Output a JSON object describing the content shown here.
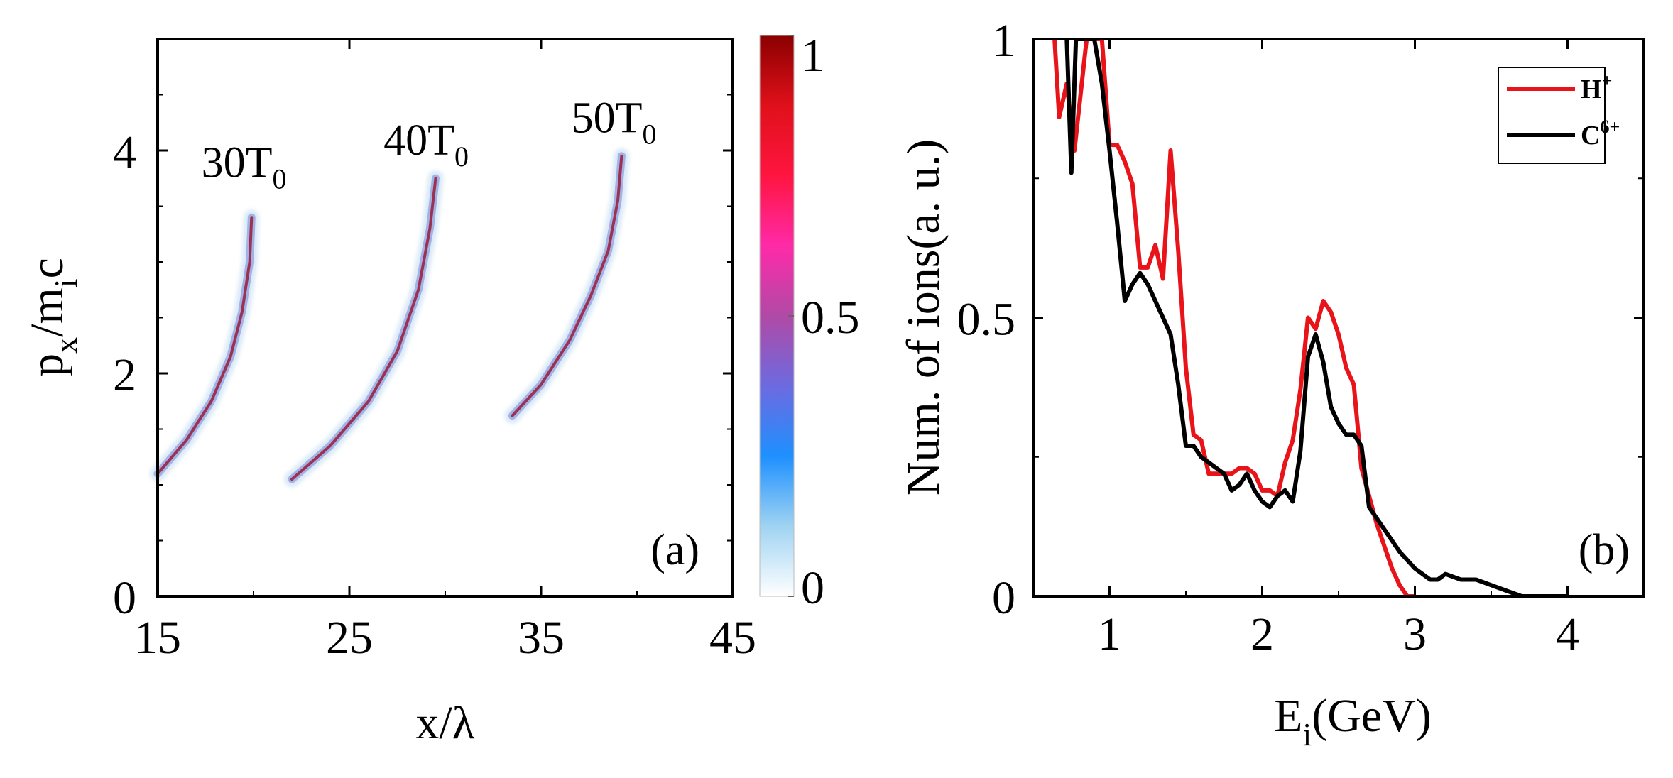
{
  "chart_data": [
    {
      "panel_label": "(a)",
      "type": "heatmap",
      "xlabel_main": "x/λ",
      "ylabel_main": "p",
      "ylabel_sub_x": "x",
      "ylabel_mid": "/m",
      "ylabel_sub_i": "i",
      "ylabel_end": "c",
      "xlim": [
        15,
        45
      ],
      "ylim": [
        0,
        5
      ],
      "xticks": [
        15,
        25,
        35,
        45
      ],
      "xtick_labels": [
        "15",
        "25",
        "35",
        "45"
      ],
      "yticks": [
        0,
        2,
        4
      ],
      "ytick_labels": [
        "0",
        "2",
        "4"
      ],
      "colorbar": {
        "range": [
          0,
          1
        ],
        "ticks": [
          0,
          0.5,
          1
        ],
        "tick_labels": [
          "0",
          "0.5",
          "1"
        ],
        "colors": [
          "#ffffff",
          "#9fd3f2",
          "#1e90ff",
          "#6d6ae0",
          "#b04aa6",
          "#ff2aa8",
          "#ff1540",
          "#e0101a",
          "#8b0000"
        ]
      },
      "annotations": [
        {
          "text": "30T",
          "sub": "0",
          "x": 19.5,
          "y": 3.8
        },
        {
          "text": "40T",
          "sub": "0",
          "x": 29.0,
          "y": 4.0
        },
        {
          "text": "50T",
          "sub": "0",
          "x": 38.8,
          "y": 4.2
        }
      ],
      "series": [
        {
          "name": "30T0",
          "x": [
            15.0,
            16.5,
            17.8,
            18.8,
            19.4,
            19.8,
            19.9
          ],
          "y": [
            1.1,
            1.4,
            1.75,
            2.15,
            2.55,
            3.0,
            3.4
          ]
        },
        {
          "name": "40T0",
          "x": [
            22.0,
            24.0,
            26.0,
            27.5,
            28.6,
            29.2,
            29.5
          ],
          "y": [
            1.05,
            1.35,
            1.75,
            2.2,
            2.75,
            3.3,
            3.75
          ]
        },
        {
          "name": "50T0",
          "x": [
            33.5,
            35.0,
            36.5,
            37.6,
            38.5,
            39.0,
            39.2
          ],
          "y": [
            1.62,
            1.9,
            2.3,
            2.7,
            3.1,
            3.55,
            3.95
          ]
        }
      ]
    },
    {
      "panel_label": "(b)",
      "type": "line",
      "xlabel_main": "E",
      "xlabel_sub": "i",
      "xlabel_end": "(GeV)",
      "ylabel": "Num. of  ions(a. u.)",
      "xlim": [
        0.5,
        4.5
      ],
      "ylim": [
        0,
        1
      ],
      "xticks": [
        1,
        2,
        3,
        4
      ],
      "xtick_labels": [
        "1",
        "2",
        "3",
        "4"
      ],
      "yticks": [
        0,
        0.5,
        1
      ],
      "ytick_labels": [
        "0",
        "0.5",
        "1"
      ],
      "legend_position": "top-right",
      "series": [
        {
          "name": "H",
          "sup": "+",
          "color": "#e8141a",
          "x": [
            0.64,
            0.67,
            0.72,
            0.77,
            0.85,
            0.9,
            0.95,
            1.0,
            1.05,
            1.1,
            1.15,
            1.2,
            1.25,
            1.3,
            1.35,
            1.4,
            1.45,
            1.5,
            1.55,
            1.6,
            1.65,
            1.7,
            1.75,
            1.8,
            1.85,
            1.9,
            1.95,
            2.0,
            2.05,
            2.1,
            2.15,
            2.2,
            2.25,
            2.3,
            2.35,
            2.4,
            2.45,
            2.5,
            2.55,
            2.6,
            2.65,
            2.7,
            2.75,
            2.8,
            2.85,
            2.9,
            2.95,
            3.0
          ],
          "y": [
            1.0,
            0.86,
            0.92,
            0.8,
            1.0,
            1.0,
            1.0,
            0.81,
            0.81,
            0.78,
            0.74,
            0.59,
            0.59,
            0.63,
            0.57,
            0.8,
            0.62,
            0.41,
            0.29,
            0.28,
            0.22,
            0.22,
            0.22,
            0.22,
            0.23,
            0.23,
            0.22,
            0.19,
            0.19,
            0.18,
            0.24,
            0.28,
            0.37,
            0.5,
            0.48,
            0.53,
            0.51,
            0.47,
            0.41,
            0.38,
            0.23,
            0.18,
            0.13,
            0.09,
            0.05,
            0.02,
            0.0,
            0.0
          ]
        },
        {
          "name": "C",
          "sup": "6+",
          "color": "#000000",
          "x": [
            0.72,
            0.75,
            0.78,
            0.85,
            0.9,
            0.95,
            1.0,
            1.05,
            1.1,
            1.15,
            1.2,
            1.25,
            1.3,
            1.35,
            1.4,
            1.45,
            1.5,
            1.55,
            1.6,
            1.65,
            1.7,
            1.75,
            1.8,
            1.85,
            1.9,
            1.95,
            2.0,
            2.05,
            2.1,
            2.15,
            2.2,
            2.25,
            2.3,
            2.35,
            2.4,
            2.45,
            2.5,
            2.55,
            2.6,
            2.65,
            2.7,
            2.8,
            2.9,
            3.0,
            3.1,
            3.15,
            3.2,
            3.3,
            3.4,
            3.5,
            3.6,
            3.7,
            3.8,
            4.0
          ],
          "y": [
            1.0,
            0.76,
            1.0,
            1.0,
            1.0,
            0.92,
            0.8,
            0.67,
            0.53,
            0.56,
            0.58,
            0.56,
            0.53,
            0.5,
            0.47,
            0.38,
            0.27,
            0.27,
            0.25,
            0.24,
            0.23,
            0.22,
            0.19,
            0.2,
            0.22,
            0.19,
            0.17,
            0.16,
            0.18,
            0.19,
            0.17,
            0.26,
            0.43,
            0.47,
            0.42,
            0.34,
            0.31,
            0.29,
            0.29,
            0.27,
            0.16,
            0.12,
            0.08,
            0.05,
            0.03,
            0.03,
            0.04,
            0.03,
            0.03,
            0.02,
            0.01,
            0.0,
            0.0,
            0.0
          ]
        }
      ]
    }
  ]
}
